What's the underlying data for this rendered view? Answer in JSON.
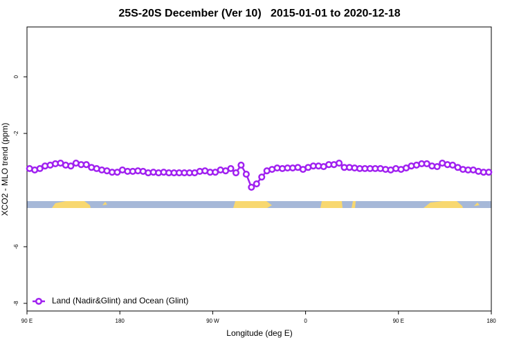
{
  "chart_data": {
    "type": "line",
    "title": "25S-20S December (Ver 10)   2015-01-01 to 2020-12-18",
    "x_label": "Longitude (deg E)",
    "y_label": "XCO2 - MLO trend (ppm)",
    "x": [
      92.5,
      97.5,
      102.5,
      107.5,
      112.5,
      117.5,
      122.5,
      127.5,
      132.5,
      137.5,
      142.5,
      147.5,
      152.5,
      157.5,
      162.5,
      167.5,
      172.5,
      177.5,
      182.5,
      187.5,
      192.5,
      197.5,
      202.5,
      207.5,
      212.5,
      217.5,
      222.5,
      227.5,
      232.5,
      237.5,
      242.5,
      247.5,
      252.5,
      257.5,
      262.5,
      267.5,
      272.5,
      277.5,
      282.5,
      287.5,
      292.5,
      297.5,
      302.5,
      307.5,
      312.5,
      317.5,
      322.5,
      327.5,
      332.5,
      337.5,
      342.5,
      347.5,
      352.5,
      357.5,
      362.5,
      367.5,
      372.5,
      377.5,
      382.5,
      387.5,
      392.5,
      397.5,
      402.5,
      407.5,
      412.5,
      417.5,
      422.5,
      427.5,
      432.5,
      437.5,
      442.5,
      447.5,
      452.5,
      457.5,
      462.5,
      467.5,
      472.5,
      477.5,
      482.5,
      487.5,
      492.5,
      497.5,
      502.5,
      507.5,
      512.5,
      517.5,
      522.5,
      527.5,
      532.5,
      537.5
    ],
    "series": [
      {
        "name": "Land (Nadir&Glint) and Ocean (Glint)",
        "color": "#a020f0",
        "values": [
          -3.24,
          -3.29,
          -3.24,
          -3.15,
          -3.12,
          -3.07,
          -3.05,
          -3.12,
          -3.15,
          -3.05,
          -3.1,
          -3.1,
          -3.2,
          -3.24,
          -3.29,
          -3.32,
          -3.37,
          -3.37,
          -3.29,
          -3.34,
          -3.34,
          -3.32,
          -3.34,
          -3.39,
          -3.37,
          -3.39,
          -3.37,
          -3.39,
          -3.39,
          -3.39,
          -3.39,
          -3.39,
          -3.39,
          -3.34,
          -3.32,
          -3.37,
          -3.37,
          -3.29,
          -3.32,
          -3.24,
          -3.39,
          -3.12,
          -3.44,
          -3.9,
          -3.78,
          -3.54,
          -3.32,
          -3.27,
          -3.22,
          -3.24,
          -3.22,
          -3.22,
          -3.2,
          -3.27,
          -3.2,
          -3.15,
          -3.15,
          -3.17,
          -3.1,
          -3.1,
          -3.05,
          -3.2,
          -3.2,
          -3.22,
          -3.24,
          -3.24,
          -3.24,
          -3.24,
          -3.24,
          -3.27,
          -3.29,
          -3.24,
          -3.27,
          -3.22,
          -3.15,
          -3.12,
          -3.07,
          -3.07,
          -3.15,
          -3.17,
          -3.05,
          -3.1,
          -3.12,
          -3.2,
          -3.27,
          -3.29,
          -3.29,
          -3.34,
          -3.37,
          -3.37
        ]
      }
    ],
    "xlim": [
      90,
      540
    ],
    "xticks": [
      {
        "value": 90,
        "label": "90 E"
      },
      180,
      {
        "value": 270,
        "label": "90 W"
      },
      {
        "value": 360,
        "label": "0"
      },
      {
        "value": 450,
        "label": "90 E"
      },
      {
        "value": 540,
        "label": "180"
      }
    ],
    "ylim": [
      -8.27,
      1.76
    ],
    "yticks": [
      -8,
      -6,
      -2,
      0
    ],
    "legend": "bottomleft"
  }
}
